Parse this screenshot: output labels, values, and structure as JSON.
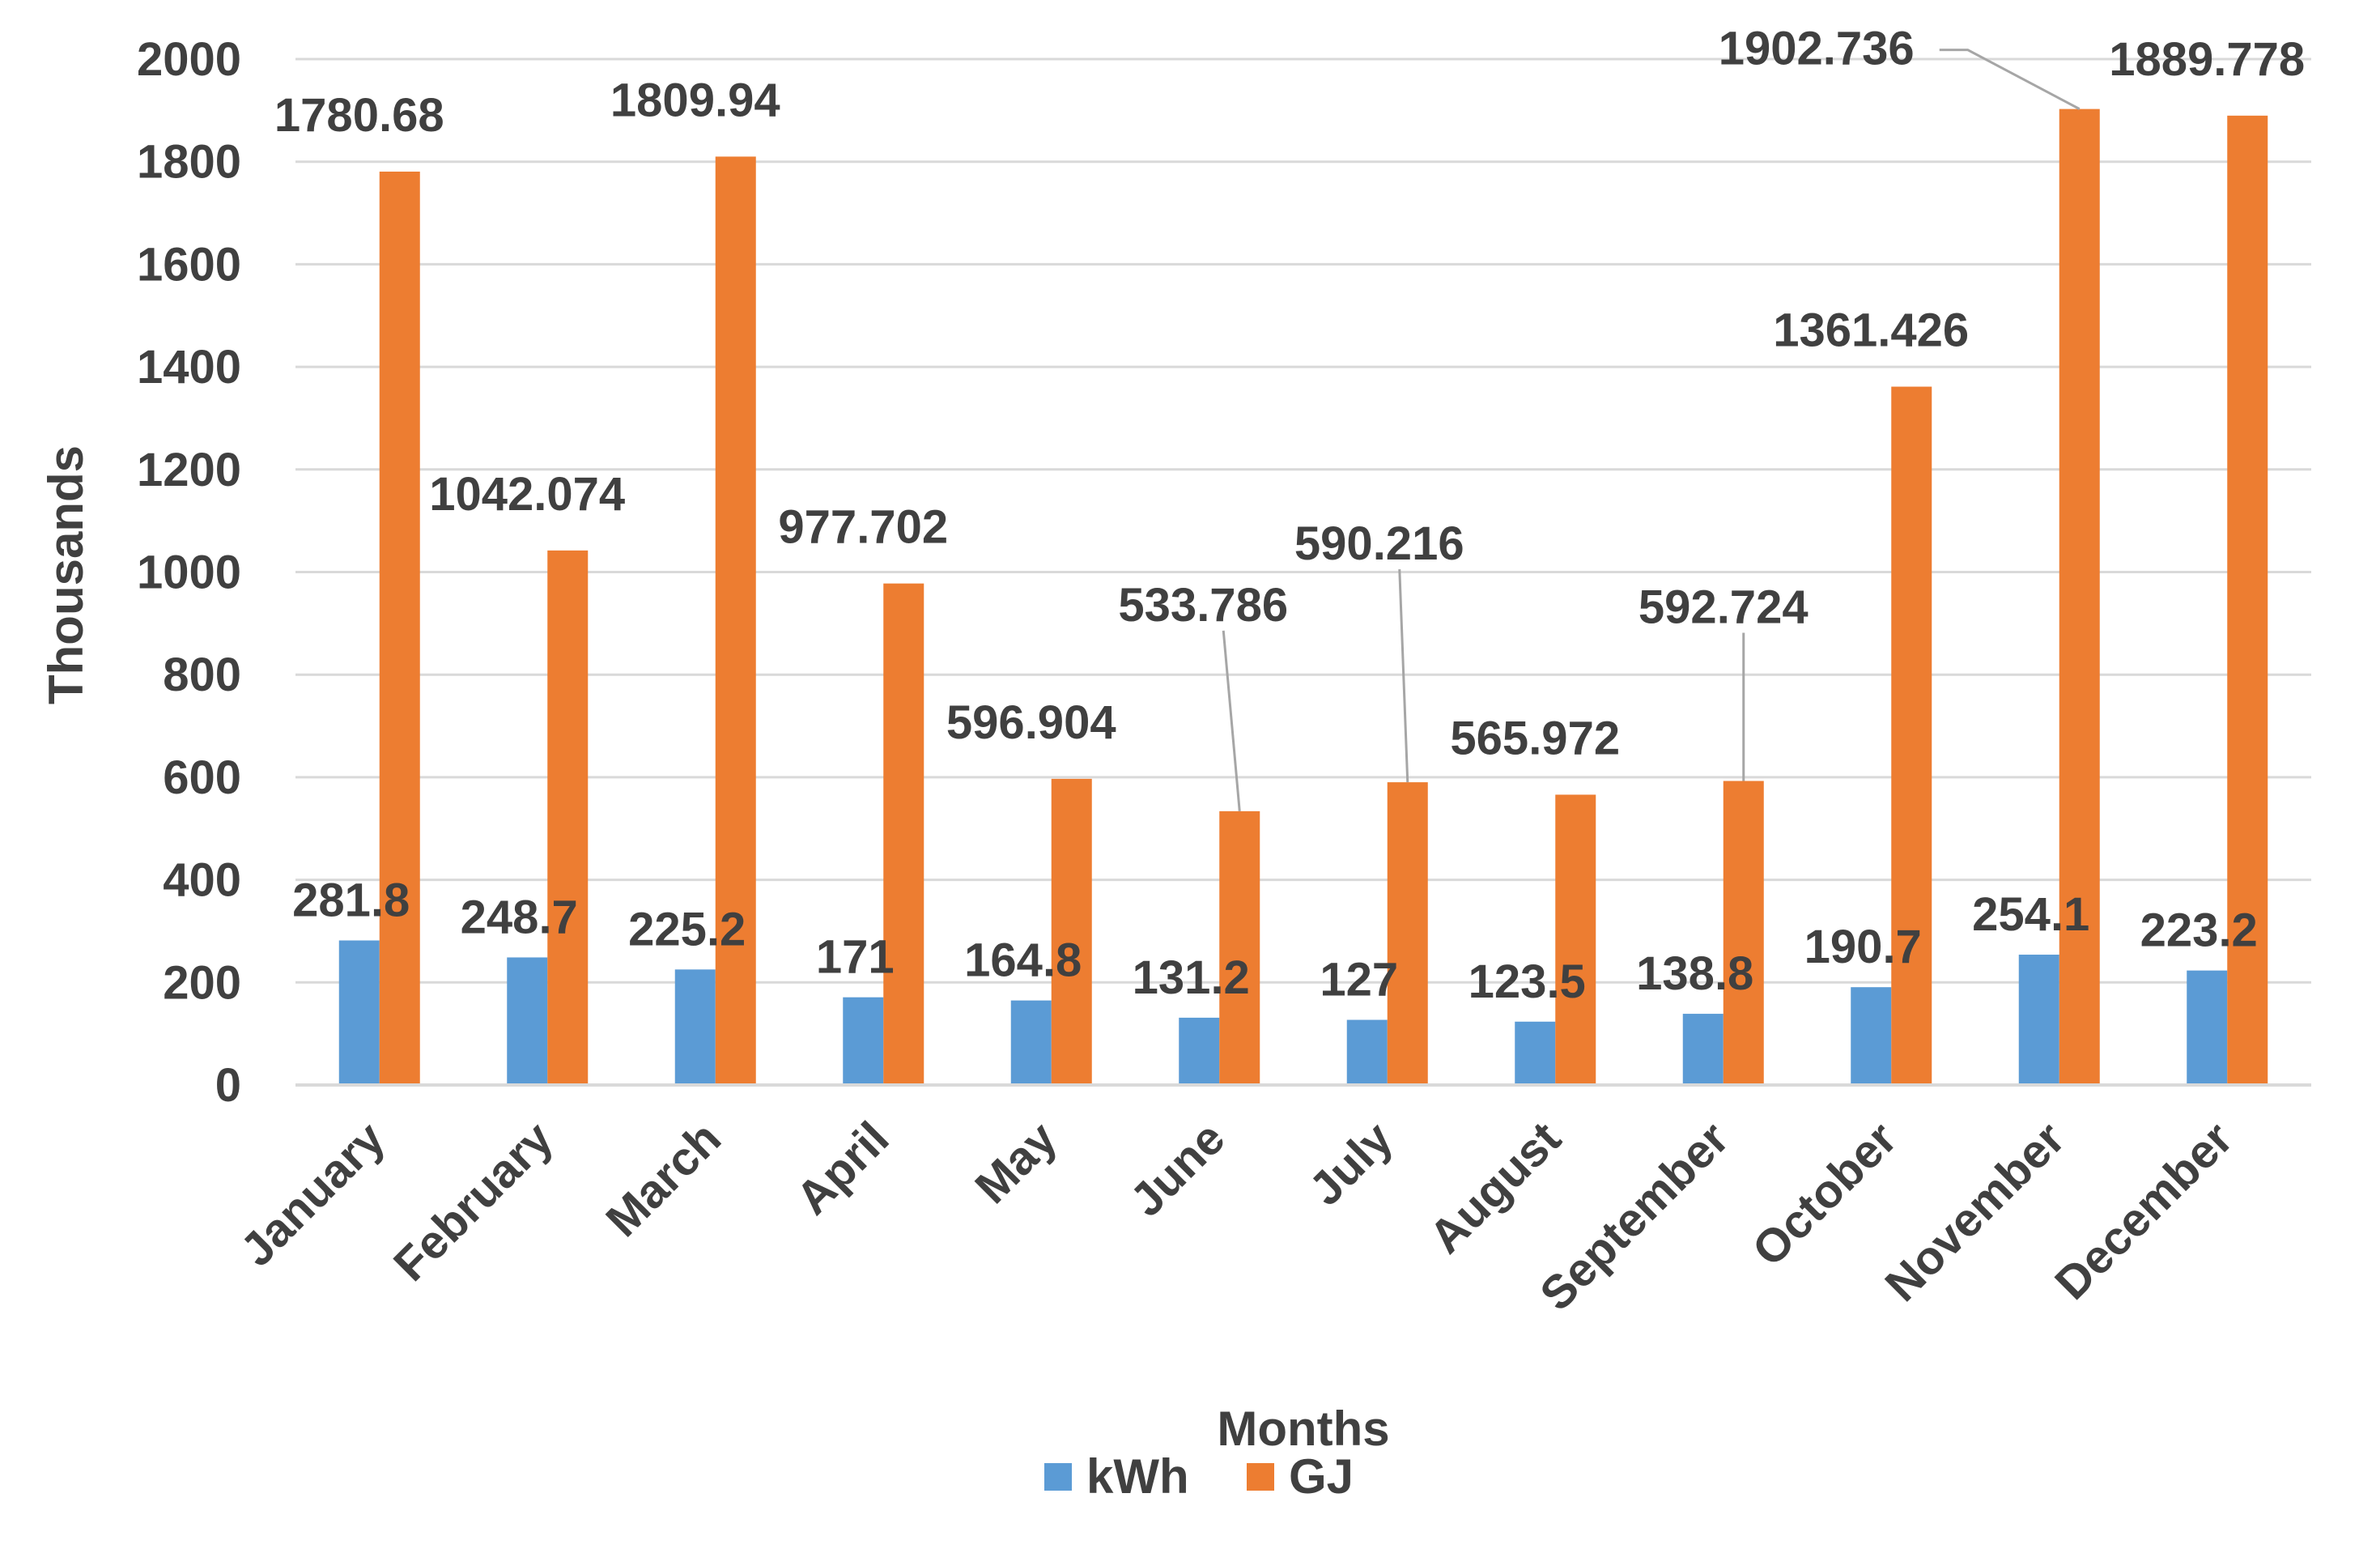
{
  "chart_data": {
    "type": "bar",
    "title": "",
    "xlabel": "Months",
    "ylabel": "Thousands",
    "ylim": [
      0,
      2000
    ],
    "yticks": [
      0,
      200,
      400,
      600,
      800,
      1000,
      1200,
      1400,
      1600,
      1800,
      2000
    ],
    "grid": true,
    "legend_position": "bottom",
    "categories": [
      "January",
      "February",
      "March",
      "April",
      "May",
      "June",
      "July",
      "August",
      "September",
      "October",
      "November",
      "December"
    ],
    "series": [
      {
        "name": "kWh",
        "color": "#5B9BD5",
        "values": [
          281.8,
          248.7,
          225.2,
          171,
          164.8,
          131.2,
          127,
          123.5,
          138.8,
          190.7,
          254.1,
          223.2
        ],
        "labels": [
          "281.8",
          "248.7",
          "225.2",
          "171",
          "164.8",
          "131.2",
          "127",
          "123.5",
          "138.8",
          "190.7",
          "254.1",
          "223.2"
        ]
      },
      {
        "name": "GJ",
        "color": "#ED7D31",
        "values": [
          1780.68,
          1042.074,
          1809.94,
          977.702,
          596.904,
          533.786,
          590.216,
          565.972,
          592.724,
          1361.426,
          1902.736,
          1889.778
        ],
        "labels": [
          "1780.68",
          "1042.074",
          "1809.94",
          "977.702",
          "596.904",
          "533.786",
          "590.216",
          "565.972",
          "592.724",
          "1361.426",
          "1902.736",
          "1889.778"
        ]
      }
    ]
  }
}
